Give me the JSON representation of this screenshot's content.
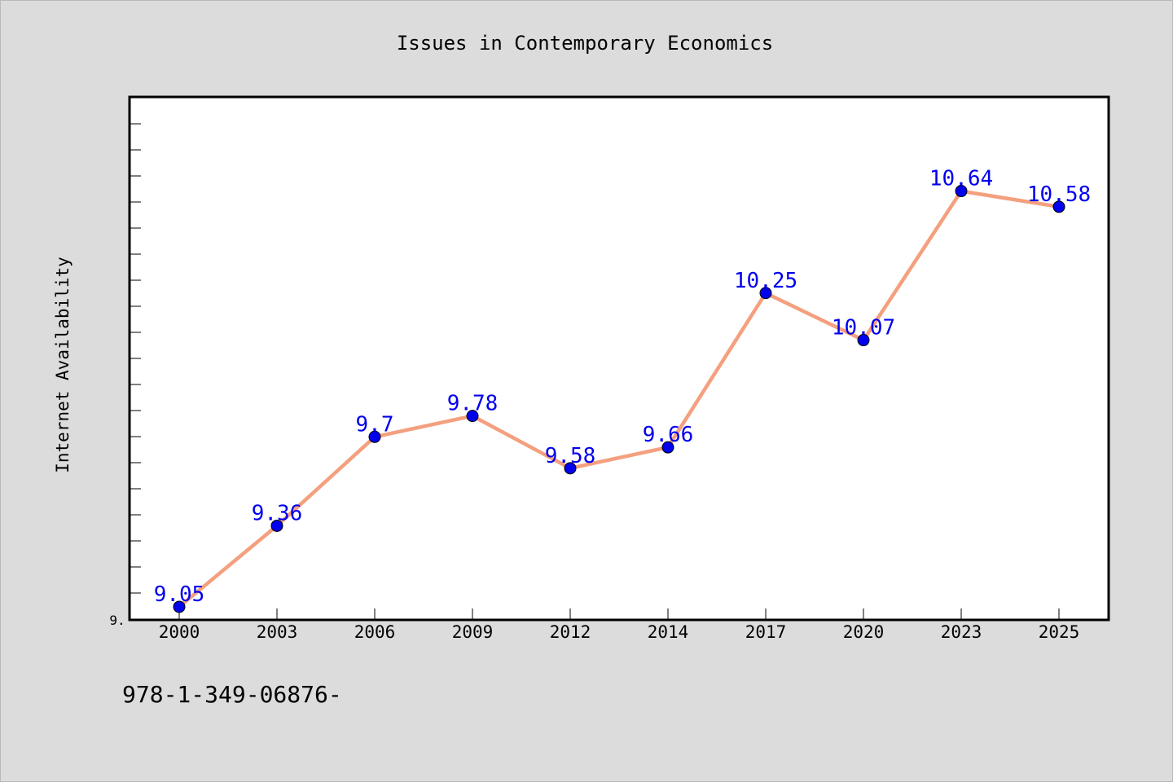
{
  "figure": {
    "footer_text": "978-1-349-06876-"
  },
  "chart_data": {
    "type": "line",
    "title": "Issues in Contemporary Economics",
    "xlabel": "",
    "ylabel": "Internet Availability",
    "categories": [
      "2000",
      "2003",
      "2006",
      "2009",
      "2012",
      "2014",
      "2017",
      "2020",
      "2023",
      "2025"
    ],
    "values": [
      9.05,
      9.36,
      9.7,
      9.78,
      9.58,
      9.66,
      10.25,
      10.07,
      10.64,
      10.58
    ],
    "data_labels": [
      "9.05",
      "9.36",
      "9.7",
      "9.78",
      "9.58",
      "9.66",
      "10.25",
      "10.07",
      "10.64",
      "10.58"
    ],
    "ylim": [
      9.0,
      11.0
    ],
    "y_tick_labels": [
      "9."
    ],
    "grid": false,
    "legend": "none",
    "colors": {
      "line": "#f4a07f",
      "marker": "#0000ee",
      "label": "#0000ee",
      "axes_border": "#000000",
      "plot_background": "#ffffff",
      "figure_background": "#dcdcdc"
    }
  }
}
